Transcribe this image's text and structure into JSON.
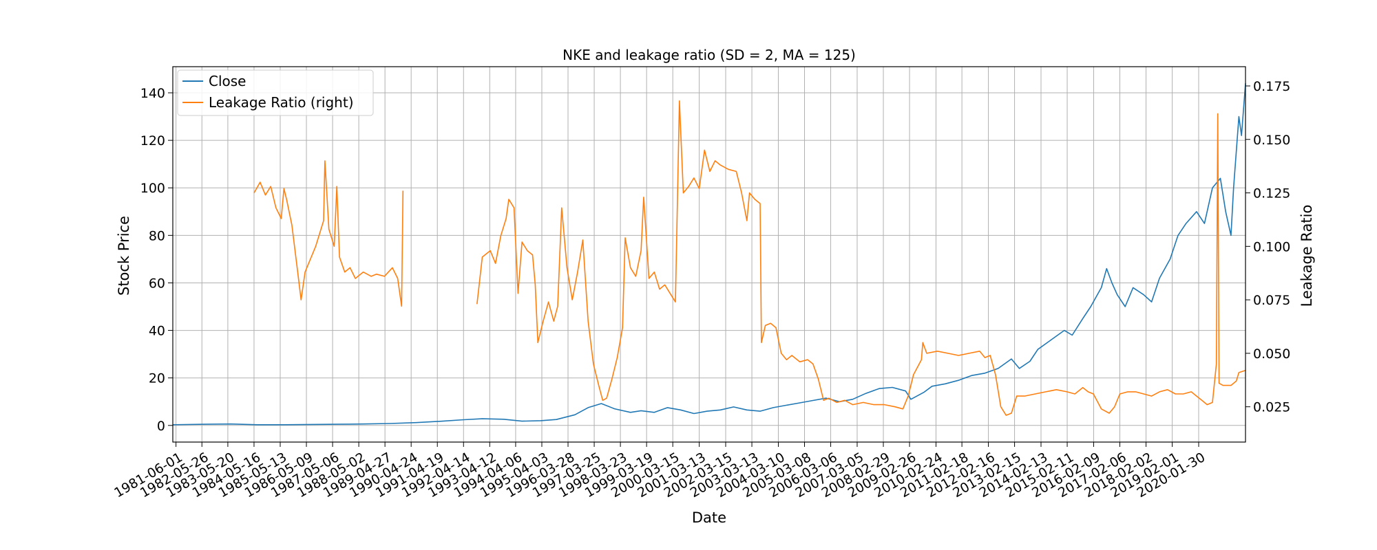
{
  "chart_data": {
    "type": "line",
    "title": "NKE and leakage ratio (SD = 2, MA = 125)",
    "xlabel": "Date",
    "ylabel": "Stock Price",
    "ylabel_right": "Leakage Ratio",
    "grid": true,
    "legend_position": "top-left",
    "xlim": [
      1981.3,
      2021.85
    ],
    "ylim": [
      -7,
      151
    ],
    "ylim_right": [
      0.0085,
      0.184
    ],
    "y_ticks": [
      0,
      20,
      40,
      60,
      80,
      100,
      120,
      140
    ],
    "y_ticks_right": [
      0.025,
      0.05,
      0.075,
      0.1,
      0.125,
      0.15,
      0.175
    ],
    "x_tick_labels": [
      "1981-06-01",
      "1982-05-26",
      "1983-05-20",
      "1984-05-16",
      "1985-05-13",
      "1986-05-09",
      "1987-05-06",
      "1988-05-02",
      "1989-04-27",
      "1990-04-24",
      "1991-04-19",
      "1992-04-14",
      "1993-04-12",
      "1994-04-06",
      "1995-04-03",
      "1996-03-28",
      "1997-03-25",
      "1998-03-23",
      "1999-03-19",
      "2000-03-15",
      "2001-03-13",
      "2002-03-15",
      "2003-03-13",
      "2004-03-10",
      "2005-03-08",
      "2006-03-06",
      "2007-03-05",
      "2008-02-29",
      "2009-02-26",
      "2010-02-24",
      "2011-02-18",
      "2012-02-16",
      "2013-02-15",
      "2014-02-13",
      "2015-02-11",
      "2016-02-09",
      "2017-02-06",
      "2018-02-02",
      "2019-02-01",
      "2020-01-30"
    ],
    "x_tick_values": [
      1981.42,
      1982.4,
      1983.38,
      1984.37,
      1985.36,
      1986.35,
      1987.34,
      1988.33,
      1989.32,
      1990.31,
      1991.3,
      1992.29,
      1993.28,
      1994.26,
      1995.25,
      1996.24,
      1997.23,
      1998.22,
      1999.21,
      2000.2,
      2001.2,
      2002.2,
      2003.19,
      2004.19,
      2005.18,
      2006.17,
      2007.17,
      2008.16,
      2009.15,
      2010.15,
      2011.13,
      2012.13,
      2013.12,
      2014.12,
      2015.11,
      2016.11,
      2017.1,
      2018.09,
      2019.08,
      2020.08
    ],
    "series": [
      {
        "name": "Close",
        "axis": "left",
        "color": "#1f77b4",
        "points": [
          [
            1981.3,
            0.3
          ],
          [
            1982.5,
            0.5
          ],
          [
            1983.5,
            0.6
          ],
          [
            1984.5,
            0.3
          ],
          [
            1985.5,
            0.3
          ],
          [
            1986.5,
            0.4
          ],
          [
            1987.5,
            0.5
          ],
          [
            1988.5,
            0.6
          ],
          [
            1989.5,
            0.8
          ],
          [
            1990.5,
            1.2
          ],
          [
            1991.5,
            1.8
          ],
          [
            1992.3,
            2.4
          ],
          [
            1993.0,
            2.8
          ],
          [
            1993.8,
            2.6
          ],
          [
            1994.5,
            1.8
          ],
          [
            1995.2,
            2.0
          ],
          [
            1995.8,
            2.5
          ],
          [
            1996.5,
            4.5
          ],
          [
            1997.0,
            7.5
          ],
          [
            1997.5,
            9.2
          ],
          [
            1998.0,
            7.0
          ],
          [
            1998.6,
            5.5
          ],
          [
            1999.0,
            6.2
          ],
          [
            1999.5,
            5.5
          ],
          [
            2000.0,
            7.5
          ],
          [
            2000.5,
            6.5
          ],
          [
            2001.0,
            5.0
          ],
          [
            2001.5,
            6.0
          ],
          [
            2002.0,
            6.5
          ],
          [
            2002.5,
            7.8
          ],
          [
            2003.0,
            6.5
          ],
          [
            2003.5,
            6.0
          ],
          [
            2004.0,
            7.5
          ],
          [
            2004.5,
            8.5
          ],
          [
            2005.0,
            9.5
          ],
          [
            2005.5,
            10.5
          ],
          [
            2006.0,
            11.5
          ],
          [
            2006.5,
            10.0
          ],
          [
            2007.0,
            11.0
          ],
          [
            2007.5,
            13.5
          ],
          [
            2008.0,
            15.5
          ],
          [
            2008.5,
            16.0
          ],
          [
            2009.0,
            14.5
          ],
          [
            2009.2,
            11.0
          ],
          [
            2009.7,
            14.0
          ],
          [
            2010.0,
            16.5
          ],
          [
            2010.5,
            17.5
          ],
          [
            2011.0,
            19.0
          ],
          [
            2011.5,
            21.0
          ],
          [
            2012.0,
            22.0
          ],
          [
            2012.5,
            24.0
          ],
          [
            2013.0,
            28.0
          ],
          [
            2013.3,
            24.0
          ],
          [
            2013.7,
            27.0
          ],
          [
            2014.0,
            32.0
          ],
          [
            2014.5,
            36.0
          ],
          [
            2015.0,
            40.0
          ],
          [
            2015.3,
            38.0
          ],
          [
            2015.7,
            45.0
          ],
          [
            2016.0,
            50.0
          ],
          [
            2016.4,
            58.0
          ],
          [
            2016.6,
            66.0
          ],
          [
            2016.8,
            60.0
          ],
          [
            2017.0,
            55.0
          ],
          [
            2017.3,
            50.0
          ],
          [
            2017.6,
            58.0
          ],
          [
            2018.0,
            55.0
          ],
          [
            2018.3,
            52.0
          ],
          [
            2018.6,
            62.0
          ],
          [
            2019.0,
            70.0
          ],
          [
            2019.3,
            80.0
          ],
          [
            2019.6,
            85.0
          ],
          [
            2020.0,
            90.0
          ],
          [
            2020.3,
            85.0
          ],
          [
            2020.6,
            100.0
          ],
          [
            2020.9,
            104.0
          ],
          [
            2021.1,
            90.0
          ],
          [
            2021.3,
            80.0
          ],
          [
            2021.4,
            100.0
          ],
          [
            2021.6,
            130.0
          ],
          [
            2021.7,
            122.0
          ],
          [
            2021.85,
            144.0
          ]
        ]
      },
      {
        "name": "Leakage Ratio (right)",
        "axis": "right",
        "color": "#ff7f0e",
        "segments": [
          [
            [
              1984.37,
              0.125
            ],
            [
              1984.6,
              0.13
            ],
            [
              1984.8,
              0.124
            ],
            [
              1985.0,
              0.128
            ],
            [
              1985.2,
              0.118
            ],
            [
              1985.4,
              0.113
            ],
            [
              1985.5,
              0.127
            ],
            [
              1985.6,
              0.122
            ],
            [
              1985.8,
              0.11
            ],
            [
              1986.0,
              0.09
            ],
            [
              1986.15,
              0.075
            ],
            [
              1986.3,
              0.088
            ],
            [
              1986.5,
              0.094
            ],
            [
              1986.7,
              0.1
            ],
            [
              1986.9,
              0.108
            ],
            [
              1987.0,
              0.112
            ],
            [
              1987.05,
              0.14
            ],
            [
              1987.2,
              0.108
            ],
            [
              1987.4,
              0.1
            ],
            [
              1987.5,
              0.128
            ],
            [
              1987.6,
              0.095
            ],
            [
              1987.8,
              0.088
            ],
            [
              1988.0,
              0.09
            ],
            [
              1988.2,
              0.085
            ],
            [
              1988.5,
              0.088
            ],
            [
              1988.8,
              0.086
            ],
            [
              1989.0,
              0.087
            ],
            [
              1989.3,
              0.086
            ],
            [
              1989.6,
              0.09
            ],
            [
              1989.8,
              0.085
            ],
            [
              1989.95,
              0.072
            ],
            [
              1990.0,
              0.126
            ]
          ],
          [
            [
              1992.8,
              0.073
            ],
            [
              1993.0,
              0.095
            ],
            [
              1993.3,
              0.098
            ],
            [
              1993.5,
              0.092
            ],
            [
              1993.7,
              0.105
            ],
            [
              1993.9,
              0.113
            ],
            [
              1994.0,
              0.122
            ],
            [
              1994.2,
              0.118
            ],
            [
              1994.35,
              0.078
            ],
            [
              1994.5,
              0.102
            ],
            [
              1994.7,
              0.098
            ],
            [
              1994.9,
              0.096
            ],
            [
              1995.0,
              0.082
            ],
            [
              1995.1,
              0.055
            ],
            [
              1995.3,
              0.065
            ],
            [
              1995.5,
              0.074
            ],
            [
              1995.7,
              0.065
            ],
            [
              1995.85,
              0.072
            ],
            [
              1996.0,
              0.118
            ],
            [
              1996.2,
              0.09
            ],
            [
              1996.4,
              0.075
            ],
            [
              1996.6,
              0.088
            ],
            [
              1996.8,
              0.103
            ],
            [
              1997.0,
              0.065
            ],
            [
              1997.2,
              0.045
            ],
            [
              1997.4,
              0.035
            ],
            [
              1997.55,
              0.028
            ],
            [
              1997.7,
              0.029
            ],
            [
              1997.9,
              0.038
            ],
            [
              1998.1,
              0.048
            ],
            [
              1998.3,
              0.062
            ],
            [
              1998.4,
              0.104
            ],
            [
              1998.6,
              0.09
            ],
            [
              1998.8,
              0.086
            ],
            [
              1999.0,
              0.098
            ],
            [
              1999.1,
              0.123
            ],
            [
              1999.3,
              0.085
            ],
            [
              1999.5,
              0.088
            ],
            [
              1999.7,
              0.08
            ],
            [
              1999.9,
              0.082
            ],
            [
              2000.1,
              0.078
            ],
            [
              2000.3,
              0.074
            ],
            [
              2000.45,
              0.168
            ],
            [
              2000.6,
              0.125
            ],
            [
              2000.8,
              0.128
            ],
            [
              2001.0,
              0.132
            ],
            [
              2001.2,
              0.127
            ],
            [
              2001.4,
              0.145
            ],
            [
              2001.6,
              0.135
            ],
            [
              2001.8,
              0.14
            ],
            [
              2002.0,
              0.138
            ],
            [
              2002.3,
              0.136
            ],
            [
              2002.6,
              0.135
            ],
            [
              2002.8,
              0.125
            ],
            [
              2003.0,
              0.112
            ],
            [
              2003.1,
              0.125
            ],
            [
              2003.3,
              0.122
            ],
            [
              2003.5,
              0.12
            ],
            [
              2003.55,
              0.055
            ],
            [
              2003.7,
              0.063
            ],
            [
              2003.9,
              0.064
            ],
            [
              2004.1,
              0.062
            ],
            [
              2004.3,
              0.05
            ],
            [
              2004.5,
              0.047
            ],
            [
              2004.7,
              0.049
            ],
            [
              2005.0,
              0.046
            ],
            [
              2005.3,
              0.047
            ],
            [
              2005.5,
              0.045
            ],
            [
              2005.7,
              0.038
            ],
            [
              2005.9,
              0.028
            ],
            [
              2006.1,
              0.029
            ],
            [
              2006.4,
              0.027
            ],
            [
              2006.7,
              0.028
            ],
            [
              2007.0,
              0.026
            ],
            [
              2007.4,
              0.027
            ],
            [
              2007.8,
              0.026
            ],
            [
              2008.2,
              0.026
            ],
            [
              2008.6,
              0.025
            ],
            [
              2008.9,
              0.024
            ],
            [
              2009.1,
              0.03
            ],
            [
              2009.3,
              0.04
            ],
            [
              2009.6,
              0.047
            ],
            [
              2009.65,
              0.055
            ],
            [
              2009.8,
              0.05
            ],
            [
              2010.2,
              0.051
            ],
            [
              2010.6,
              0.05
            ],
            [
              2011.0,
              0.049
            ],
            [
              2011.4,
              0.05
            ],
            [
              2011.8,
              0.051
            ],
            [
              2012.0,
              0.048
            ],
            [
              2012.2,
              0.049
            ],
            [
              2012.4,
              0.04
            ],
            [
              2012.6,
              0.025
            ],
            [
              2012.8,
              0.021
            ],
            [
              2013.0,
              0.022
            ],
            [
              2013.2,
              0.03
            ],
            [
              2013.5,
              0.03
            ],
            [
              2013.9,
              0.031
            ],
            [
              2014.3,
              0.032
            ],
            [
              2014.7,
              0.033
            ],
            [
              2015.1,
              0.032
            ],
            [
              2015.4,
              0.031
            ],
            [
              2015.7,
              0.034
            ],
            [
              2015.9,
              0.032
            ],
            [
              2016.1,
              0.031
            ],
            [
              2016.4,
              0.024
            ],
            [
              2016.7,
              0.022
            ],
            [
              2016.9,
              0.025
            ],
            [
              2017.1,
              0.031
            ],
            [
              2017.4,
              0.032
            ],
            [
              2017.7,
              0.032
            ],
            [
              2018.0,
              0.031
            ],
            [
              2018.3,
              0.03
            ],
            [
              2018.6,
              0.032
            ],
            [
              2018.9,
              0.033
            ],
            [
              2019.2,
              0.031
            ],
            [
              2019.5,
              0.031
            ],
            [
              2019.8,
              0.032
            ],
            [
              2020.0,
              0.03
            ],
            [
              2020.2,
              0.028
            ],
            [
              2020.4,
              0.026
            ],
            [
              2020.6,
              0.027
            ],
            [
              2020.75,
              0.045
            ],
            [
              2020.8,
              0.162
            ],
            [
              2020.85,
              0.036
            ],
            [
              2021.0,
              0.035
            ],
            [
              2021.3,
              0.035
            ],
            [
              2021.5,
              0.037
            ],
            [
              2021.6,
              0.041
            ],
            [
              2021.85,
              0.042
            ]
          ]
        ]
      }
    ]
  }
}
